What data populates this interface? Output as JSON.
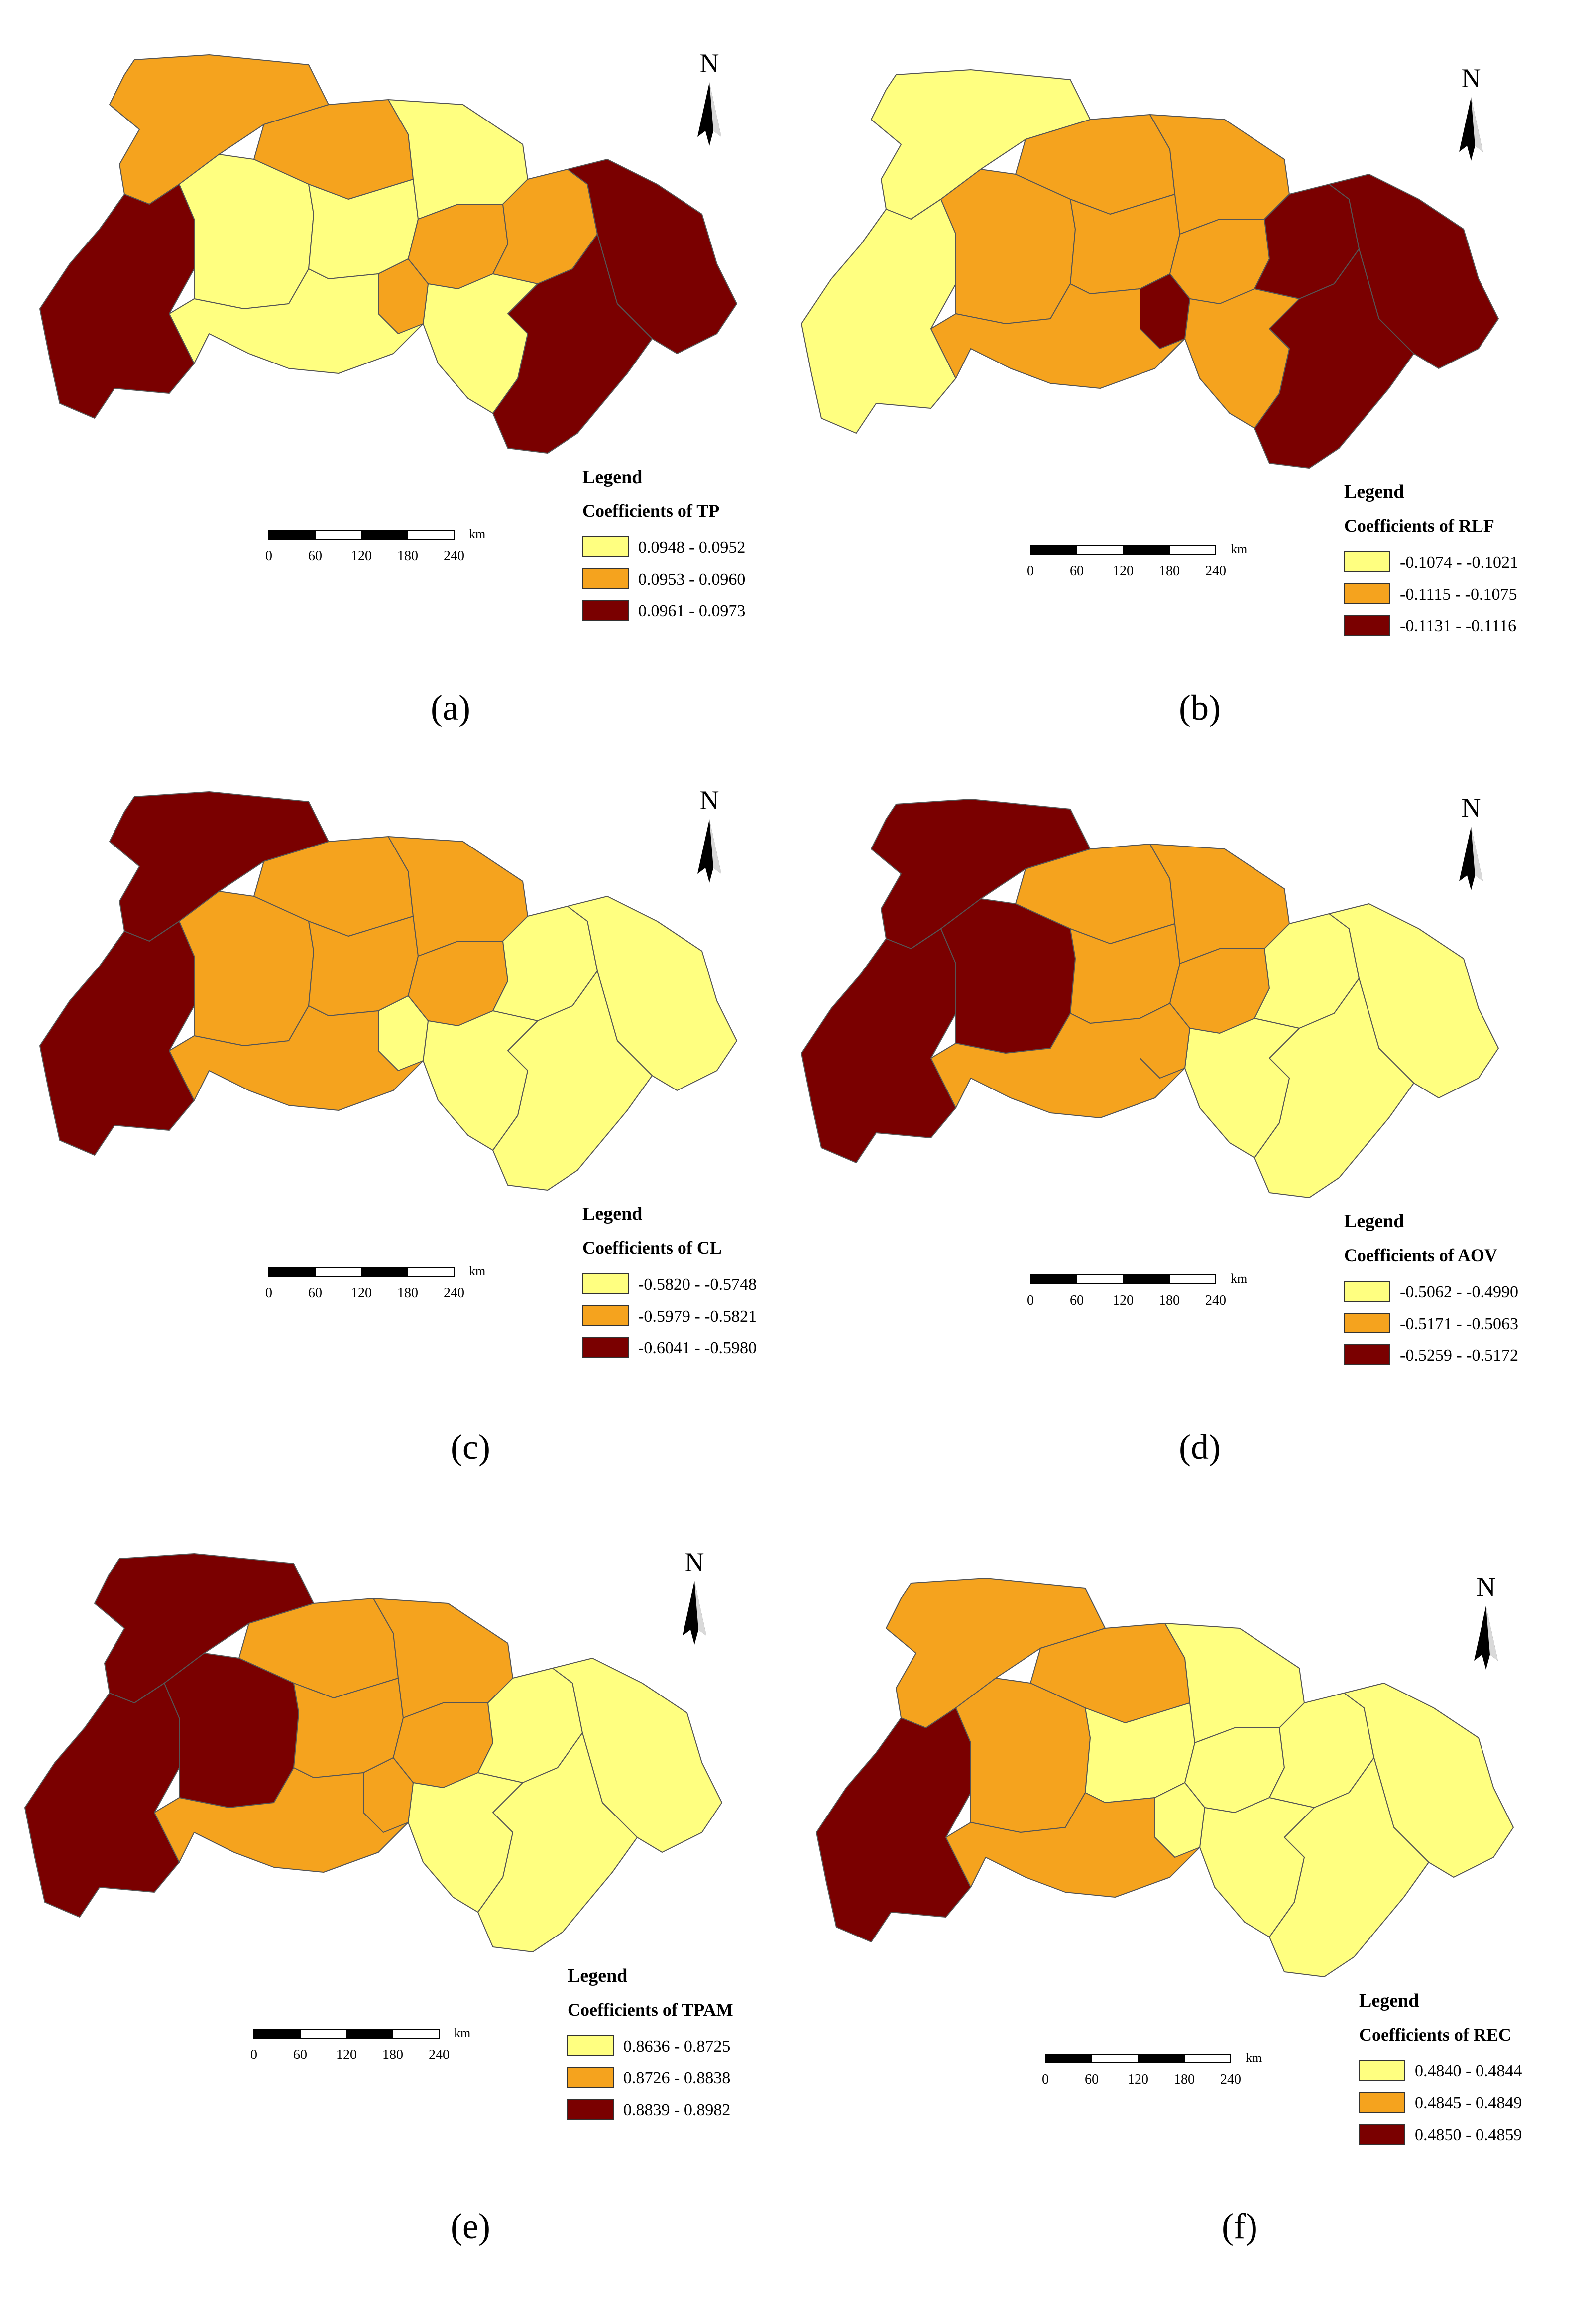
{
  "north_label": "N",
  "legend_heading": "Legend",
  "scale_unit": "km",
  "scale_ticks": [
    "0",
    "60",
    "120",
    "180",
    "240"
  ],
  "colors": {
    "low": "#ffff80",
    "mid": "#f5a31e",
    "high": "#7a0000",
    "border": "#555555"
  },
  "panels": [
    {
      "caption": "(a)",
      "legend_title": "Coefficients of TP",
      "classes": [
        {
          "label": "0.0948 - 0.0952",
          "color": "#ffff80"
        },
        {
          "label": "0.0953 - 0.0960",
          "color": "#f5a31e"
        },
        {
          "label": "0.0961 - 0.0973",
          "color": "#7a0000"
        }
      ]
    },
    {
      "caption": "(b)",
      "legend_title": "Coefficients of RLF",
      "classes": [
        {
          "label": "-0.1074 - -0.1021",
          "color": "#ffff80"
        },
        {
          "label": "-0.1115 - -0.1075",
          "color": "#f5a31e"
        },
        {
          "label": "-0.1131 - -0.1116",
          "color": "#7a0000"
        }
      ]
    },
    {
      "caption": "(c)",
      "legend_title": "Coefficients of CL",
      "classes": [
        {
          "label": "-0.5820 - -0.5748",
          "color": "#ffff80"
        },
        {
          "label": "-0.5979 - -0.5821",
          "color": "#f5a31e"
        },
        {
          "label": "-0.6041 - -0.5980",
          "color": "#7a0000"
        }
      ]
    },
    {
      "caption": "(d)",
      "legend_title": "Coefficients of AOV",
      "classes": [
        {
          "label": "-0.5062 - -0.4990",
          "color": "#ffff80"
        },
        {
          "label": "-0.5171 - -0.5063",
          "color": "#f5a31e"
        },
        {
          "label": "-0.5259 - -0.5172",
          "color": "#7a0000"
        }
      ]
    },
    {
      "caption": "(e)",
      "legend_title": "Coefficients of TPAM",
      "classes": [
        {
          "label": "0.8636 - 0.8725",
          "color": "#ffff80"
        },
        {
          "label": "0.8726 - 0.8838",
          "color": "#f5a31e"
        },
        {
          "label": "0.8839 - 0.8982",
          "color": "#7a0000"
        }
      ]
    },
    {
      "caption": "(f)",
      "legend_title": "Coefficients of REC",
      "classes": [
        {
          "label": "0.4840 - 0.4844",
          "color": "#ffff80"
        },
        {
          "label": "0.4845 - 0.4849",
          "color": "#f5a31e"
        },
        {
          "label": "0.4850 - 0.4859",
          "color": "#7a0000"
        }
      ]
    }
  ]
}
